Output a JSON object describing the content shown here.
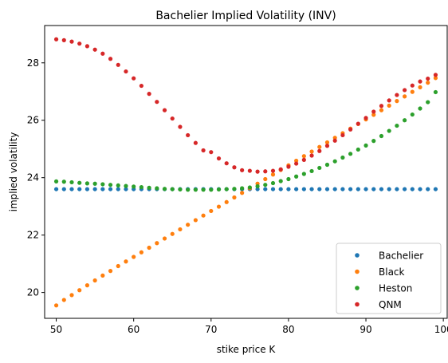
{
  "chart_data": {
    "type": "scatter",
    "title": "Bachelier Implied Volatility (INV)",
    "xlabel": "stike price K",
    "ylabel": "implied volatility",
    "xlim": [
      48.5,
      100.5
    ],
    "ylim": [
      19.1,
      29.3
    ],
    "xticks": [
      50,
      60,
      70,
      80,
      90,
      100
    ],
    "yticks": [
      20,
      22,
      24,
      26,
      28
    ],
    "grid": false,
    "legend_position": "lower right",
    "x": [
      50,
      51,
      52,
      53,
      54,
      55,
      56,
      57,
      58,
      59,
      60,
      61,
      62,
      63,
      64,
      65,
      66,
      67,
      68,
      69,
      70,
      71,
      72,
      73,
      74,
      75,
      76,
      77,
      78,
      79,
      80,
      81,
      82,
      83,
      84,
      85,
      86,
      87,
      88,
      89,
      90,
      91,
      92,
      93,
      94,
      95,
      96,
      97,
      98,
      99
    ],
    "series": [
      {
        "name": "Bachelier",
        "color": "#1f77b4",
        "values": [
          23.6,
          23.6,
          23.6,
          23.6,
          23.6,
          23.6,
          23.6,
          23.6,
          23.6,
          23.6,
          23.6,
          23.6,
          23.6,
          23.6,
          23.6,
          23.6,
          23.6,
          23.6,
          23.6,
          23.6,
          23.6,
          23.6,
          23.6,
          23.6,
          23.6,
          23.6,
          23.6,
          23.6,
          23.6,
          23.6,
          23.6,
          23.6,
          23.6,
          23.6,
          23.6,
          23.6,
          23.6,
          23.6,
          23.6,
          23.6,
          23.6,
          23.6,
          23.6,
          23.6,
          23.6,
          23.6,
          23.6,
          23.6,
          23.6,
          23.6
        ]
      },
      {
        "name": "Black",
        "color": "#ff7f0e",
        "values": [
          19.55,
          19.74,
          19.91,
          20.08,
          20.25,
          20.42,
          20.59,
          20.75,
          20.92,
          21.08,
          21.24,
          21.4,
          21.56,
          21.72,
          21.88,
          22.04,
          22.2,
          22.36,
          22.52,
          22.68,
          22.84,
          22.99,
          23.15,
          23.31,
          23.47,
          23.63,
          23.79,
          23.95,
          24.11,
          24.27,
          24.43,
          24.59,
          24.75,
          24.91,
          25.07,
          25.23,
          25.39,
          25.55,
          25.71,
          25.87,
          26.03,
          26.19,
          26.35,
          26.51,
          26.67,
          26.83,
          26.99,
          27.15,
          27.31,
          27.47
        ]
      },
      {
        "name": "Heston",
        "color": "#2ca02c",
        "values": [
          23.87,
          23.86,
          23.84,
          23.82,
          23.8,
          23.79,
          23.77,
          23.75,
          23.73,
          23.71,
          23.69,
          23.67,
          23.65,
          23.63,
          23.61,
          23.6,
          23.59,
          23.58,
          23.58,
          23.58,
          23.58,
          23.59,
          23.6,
          23.61,
          23.63,
          23.66,
          23.7,
          23.75,
          23.81,
          23.88,
          23.95,
          24.04,
          24.13,
          24.23,
          24.34,
          24.45,
          24.57,
          24.7,
          24.83,
          24.98,
          25.12,
          25.28,
          25.45,
          25.63,
          25.81,
          26.0,
          26.2,
          26.41,
          26.63,
          26.98
        ]
      },
      {
        "name": "QNM",
        "color": "#d62728",
        "values": [
          28.82,
          28.79,
          28.74,
          28.67,
          28.58,
          28.46,
          28.32,
          28.14,
          27.93,
          27.7,
          27.46,
          27.2,
          26.92,
          26.64,
          26.35,
          26.06,
          25.77,
          25.48,
          25.21,
          24.95,
          24.89,
          24.67,
          24.5,
          24.36,
          24.26,
          24.24,
          24.21,
          24.22,
          24.24,
          24.29,
          24.38,
          24.49,
          24.62,
          24.77,
          24.93,
          25.11,
          25.29,
          25.48,
          25.68,
          25.88,
          26.08,
          26.3,
          26.5,
          26.69,
          26.88,
          27.05,
          27.21,
          27.35,
          27.45,
          27.58
        ]
      }
    ]
  }
}
